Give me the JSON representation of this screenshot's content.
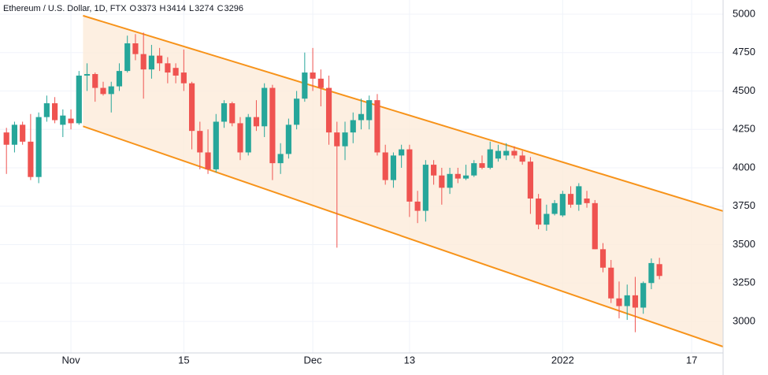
{
  "chart_data": {
    "type": "candlestick",
    "header": {
      "title": "Ethereum / U.S. Dollar, 1D, FTX",
      "ohlc": [
        {
          "label": "O",
          "value": 3373
        },
        {
          "label": "H",
          "value": 3414
        },
        {
          "label": "L",
          "value": 3274
        },
        {
          "label": "C",
          "value": 3296
        }
      ]
    },
    "x": [
      0,
      1,
      2,
      3,
      4,
      5,
      6,
      7,
      8,
      9,
      10,
      11,
      12,
      13,
      14,
      15,
      16,
      17,
      18,
      19,
      20,
      21,
      22,
      23,
      24,
      25,
      26,
      27,
      28,
      29,
      30,
      31,
      32,
      33,
      34,
      35,
      36,
      37,
      38,
      39,
      40,
      41,
      42,
      43,
      44,
      45,
      46,
      47,
      48,
      49,
      50,
      51,
      52,
      53,
      54,
      55,
      56,
      57,
      58,
      59,
      60,
      61,
      62,
      63,
      64,
      65,
      66,
      67,
      68,
      69,
      70,
      71,
      72,
      73,
      74,
      75,
      76,
      77,
      78,
      79,
      80,
      81
    ],
    "open": [
      4230,
      4150,
      4280,
      4170,
      3940,
      4330,
      4420,
      4280,
      4320,
      4290,
      4600,
      4610,
      4520,
      4480,
      4530,
      4630,
      4810,
      4740,
      4640,
      4730,
      4680,
      4650,
      4620,
      4550,
      4240,
      4100,
      3990,
      4300,
      4420,
      4290,
      4100,
      4330,
      4270,
      4520,
      4030,
      4090,
      4280,
      4450,
      4620,
      4580,
      4520,
      4230,
      4140,
      4230,
      4310,
      4310,
      4440,
      4100,
      3920,
      4080,
      4120,
      3780,
      3720,
      4020,
      3950,
      3870,
      3960,
      3930,
      3950,
      4030,
      4000,
      4060,
      4080,
      4110,
      4080,
      4040,
      3800,
      3630,
      3700,
      3690,
      3830,
      3760,
      3800,
      3770,
      3470,
      3350,
      3150,
      3100,
      3170,
      3090,
      3250,
      3373
    ],
    "high": [
      4260,
      4300,
      4300,
      4350,
      4360,
      4470,
      4460,
      4380,
      4380,
      4630,
      4680,
      4620,
      4560,
      4560,
      4680,
      4860,
      4870,
      4880,
      4800,
      4780,
      4720,
      4680,
      4770,
      4560,
      4300,
      4250,
      4350,
      4440,
      4430,
      4330,
      4350,
      4440,
      4550,
      4540,
      4160,
      4320,
      4500,
      4750,
      4780,
      4640,
      4600,
      4300,
      4300,
      4360,
      4450,
      4470,
      4480,
      4150,
      4100,
      4150,
      4150,
      3850,
      4050,
      4050,
      4000,
      4000,
      4000,
      4020,
      4050,
      4080,
      4170,
      4150,
      4160,
      4140,
      4110,
      4070,
      3830,
      3760,
      3790,
      3850,
      3880,
      3900,
      3850,
      3790,
      3510,
      3400,
      3260,
      3240,
      3290,
      3260,
      3410,
      3414
    ],
    "low": [
      3960,
      4100,
      4150,
      3920,
      3900,
      4300,
      4290,
      4200,
      4250,
      4280,
      4500,
      4430,
      4470,
      4360,
      4500,
      4620,
      4700,
      4450,
      4580,
      4630,
      4550,
      4550,
      4500,
      4120,
      3990,
      3960,
      3970,
      4260,
      4270,
      4050,
      4080,
      4240,
      4200,
      3920,
      3960,
      4060,
      4250,
      4430,
      4500,
      4400,
      4150,
      3480,
      4050,
      4160,
      4250,
      4250,
      4080,
      3890,
      3870,
      4000,
      3680,
      3640,
      3650,
      3890,
      3760,
      3830,
      3900,
      3920,
      3940,
      3990,
      3990,
      4040,
      4050,
      4060,
      4020,
      3700,
      3600,
      3590,
      3690,
      3680,
      3740,
      3720,
      3740,
      3470,
      3320,
      3120,
      3020,
      3010,
      2930,
      3050,
      3210,
      3274
    ],
    "close": [
      4150,
      4280,
      4170,
      3940,
      4330,
      4420,
      4310,
      4340,
      4290,
      4600,
      4610,
      4520,
      4480,
      4530,
      4630,
      4810,
      4740,
      4640,
      4730,
      4680,
      4620,
      4600,
      4550,
      4240,
      4100,
      3990,
      4300,
      4420,
      4290,
      4100,
      4330,
      4270,
      4520,
      4030,
      4090,
      4280,
      4450,
      4620,
      4580,
      4520,
      4230,
      4140,
      4230,
      4310,
      4350,
      4440,
      4100,
      3920,
      4080,
      4120,
      3780,
      3720,
      4020,
      3950,
      3870,
      3960,
      3930,
      3950,
      4030,
      4000,
      4120,
      4110,
      4110,
      4080,
      4040,
      3800,
      3630,
      3700,
      3770,
      3830,
      3760,
      3880,
      3770,
      3470,
      3350,
      3150,
      3100,
      3170,
      3090,
      3250,
      3380,
      3296
    ],
    "up_color": "#26a69a",
    "down_color": "#ef5350",
    "channel": {
      "x": [
        9.5,
        88.9
      ],
      "upper": [
        4990,
        3718
      ],
      "lower": [
        4270,
        2836
      ],
      "color": "#f7931a",
      "fill": "#fdebd9"
    },
    "xlim": [
      -0.8,
      88.9
    ],
    "ylim": [
      2795,
      5092
    ],
    "xticks": [
      {
        "value": 8,
        "label": "Nov"
      },
      {
        "value": 22,
        "label": "15"
      },
      {
        "value": 38,
        "label": "Dec"
      },
      {
        "value": 50,
        "label": "13"
      },
      {
        "value": 69,
        "label": "2022"
      },
      {
        "value": 85,
        "label": "17"
      }
    ],
    "yticks": [
      3000,
      3250,
      3500,
      3750,
      4000,
      4250,
      4500,
      4750,
      5000
    ],
    "grid": true
  }
}
